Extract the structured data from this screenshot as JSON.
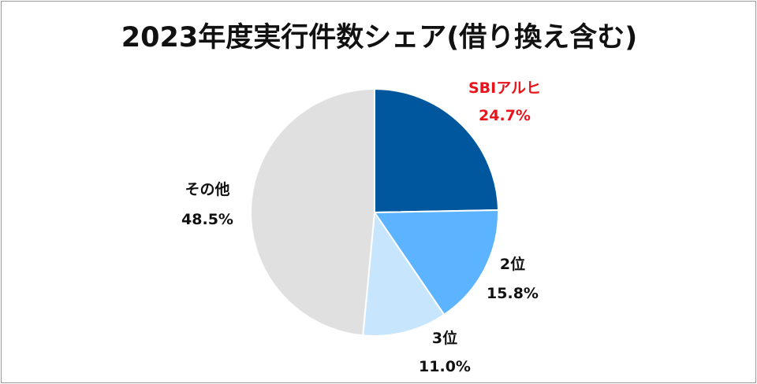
{
  "chart_data": {
    "type": "pie",
    "title": "2023年度実行件数シェア(借り換え含む)",
    "start_angle_deg": 0,
    "direction": "clockwise",
    "legend": "none",
    "slices": [
      {
        "name": "SBIアルヒ",
        "value": 24.7,
        "label": "24.7%",
        "color": "#00579e",
        "label_color": "#e8141b"
      },
      {
        "name": "2位",
        "value": 15.8,
        "label": "15.8%",
        "color": "#5cb3ff",
        "label_color": "#111111"
      },
      {
        "name": "3位",
        "value": 11.0,
        "label": "11.0%",
        "color": "#c7e6fd",
        "label_color": "#111111"
      },
      {
        "name": "その他",
        "value": 48.5,
        "label": "48.5%",
        "color": "#e0e0e0",
        "label_color": "#111111"
      }
    ]
  }
}
